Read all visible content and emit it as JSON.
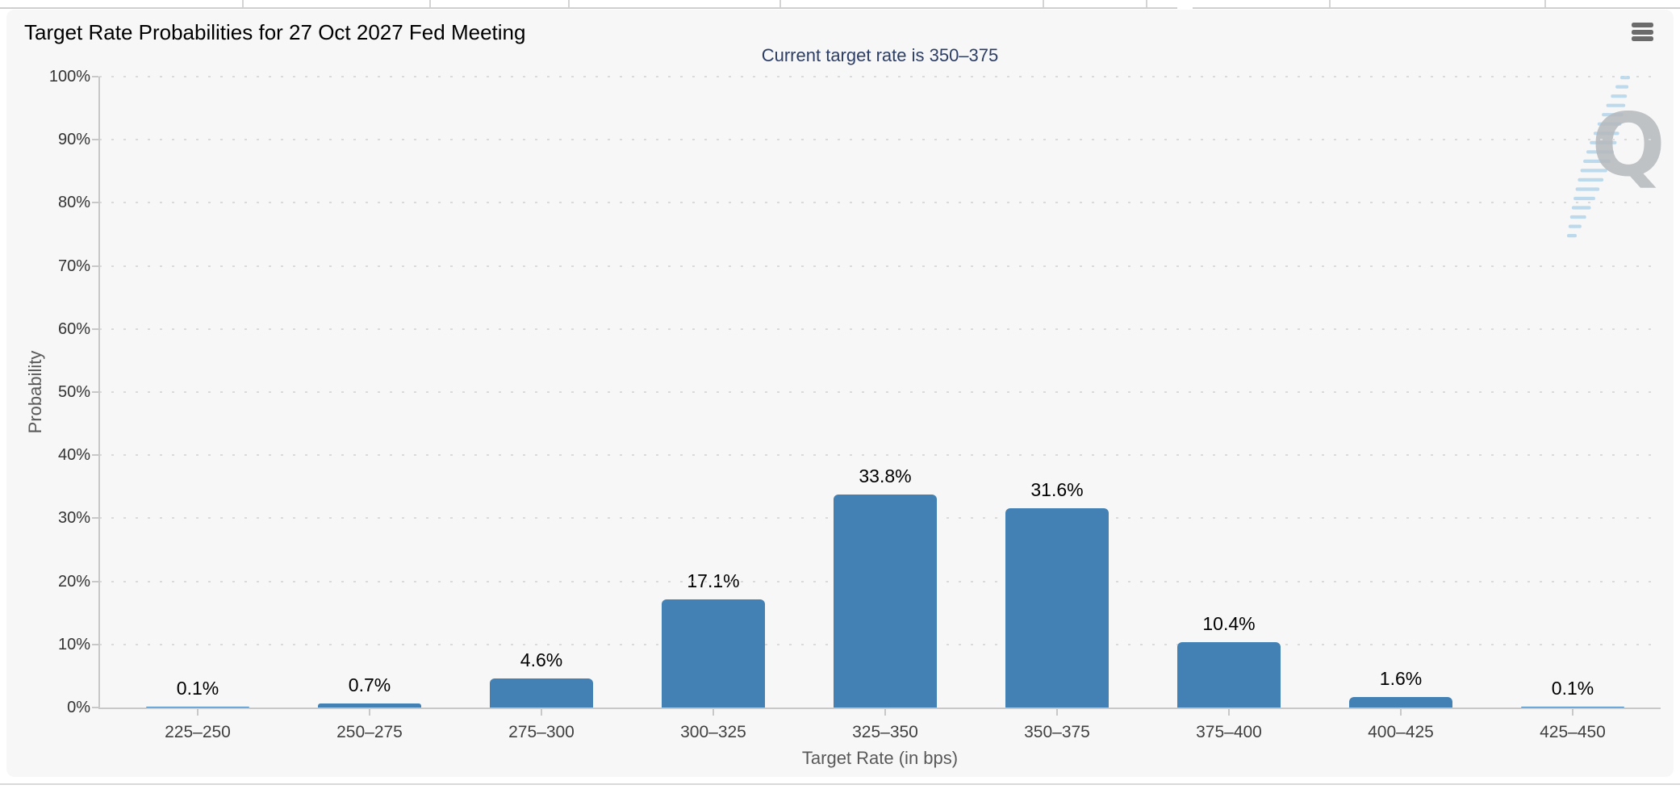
{
  "page": {
    "title": "Target Rate Probabilities for 27 Oct 2027 Fed Meeting"
  },
  "toolbar": {
    "menu_icon": "hamburger-menu-icon"
  },
  "watermark": {
    "letter": "Q"
  },
  "chart_data": {
    "type": "bar",
    "title": "Target Rate Probabilities for 27 Oct 2027 Fed Meeting",
    "subtitle": "Current target rate is 350–375",
    "categories": [
      "225–250",
      "250–275",
      "275–300",
      "300–325",
      "325–350",
      "350–375",
      "375–400",
      "400–425",
      "425–450"
    ],
    "values": [
      0.1,
      0.7,
      4.6,
      17.1,
      33.8,
      31.6,
      10.4,
      1.6,
      0.1
    ],
    "value_labels": [
      "0.1%",
      "0.7%",
      "4.6%",
      "17.1%",
      "33.8%",
      "31.6%",
      "10.4%",
      "1.6%",
      "0.1%"
    ],
    "xlabel": "Target Rate (in bps)",
    "ylabel": "Probability",
    "ylim": [
      0,
      100
    ],
    "y_tick_values": [
      0,
      10,
      20,
      30,
      40,
      50,
      60,
      70,
      80,
      90,
      100
    ],
    "y_tick_labels": [
      "0%",
      "10%",
      "20%",
      "30%",
      "40%",
      "50%",
      "60%",
      "70%",
      "80%",
      "90%",
      "100%"
    ],
    "grid": "dotted-horizontal",
    "legend": "none",
    "bar_color": "#4381b4",
    "label_color": "#000000",
    "subtitle_color": "#2c3e66"
  }
}
